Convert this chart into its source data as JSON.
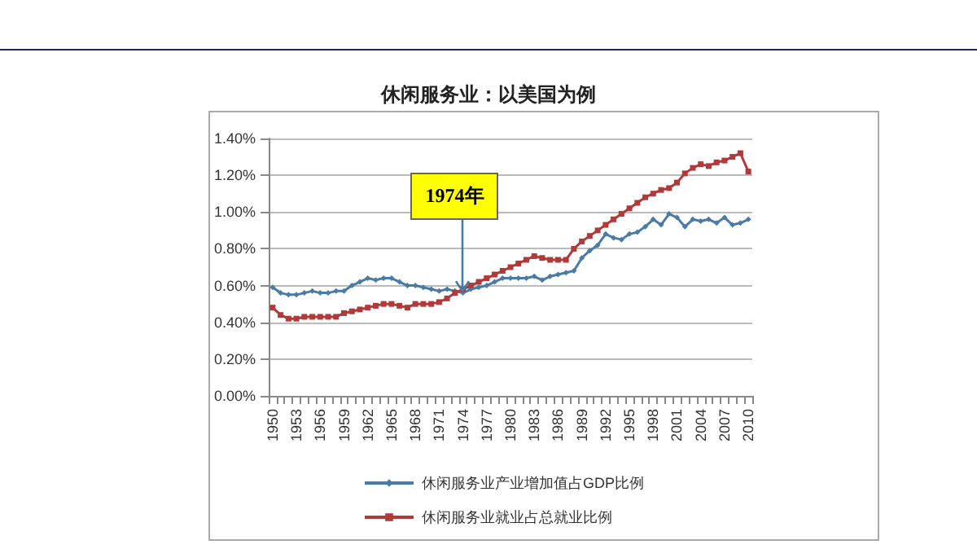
{
  "chart_data": {
    "type": "line",
    "title": "休闲服务业：以美国为例",
    "categories": [
      "1950",
      null,
      null,
      "1953",
      null,
      null,
      "1956",
      null,
      null,
      "1959",
      null,
      null,
      "1962",
      null,
      null,
      "1965",
      null,
      null,
      "1968",
      null,
      null,
      "1971",
      null,
      null,
      "1974",
      null,
      null,
      "1977",
      null,
      null,
      "1980",
      null,
      null,
      "1983",
      null,
      null,
      "1986",
      null,
      null,
      "1989",
      null,
      null,
      "1992",
      null,
      null,
      "1995",
      null,
      null,
      "1998",
      null,
      null,
      "2001",
      null,
      null,
      "2004",
      null,
      null,
      "2007",
      null,
      null,
      "2010"
    ],
    "series": [
      {
        "name": "休闲服务业产业增加值占GDP比例",
        "color": "#4a7ba6",
        "marker": "diamond",
        "values": [
          0.59,
          0.56,
          0.55,
          0.55,
          0.56,
          0.57,
          0.56,
          0.56,
          0.57,
          0.57,
          0.6,
          0.62,
          0.64,
          0.63,
          0.64,
          0.64,
          0.62,
          0.6,
          0.6,
          0.59,
          0.58,
          0.57,
          0.58,
          0.57,
          0.56,
          0.58,
          0.59,
          0.6,
          0.62,
          0.64,
          0.64,
          0.64,
          0.64,
          0.65,
          0.63,
          0.65,
          0.66,
          0.67,
          0.68,
          0.75,
          0.79,
          0.82,
          0.88,
          0.86,
          0.85,
          0.88,
          0.89,
          0.92,
          0.96,
          0.93,
          0.99,
          0.97,
          0.92,
          0.96,
          0.95,
          0.96,
          0.94,
          0.97,
          0.93,
          0.94,
          0.96
        ]
      },
      {
        "name": "休闲服务业就业占总就业比例",
        "color": "#b03a3a",
        "marker": "square",
        "values": [
          0.48,
          0.44,
          0.42,
          0.42,
          0.43,
          0.43,
          0.43,
          0.43,
          0.43,
          0.45,
          0.46,
          0.47,
          0.48,
          0.49,
          0.5,
          0.5,
          0.49,
          0.48,
          0.5,
          0.5,
          0.5,
          0.51,
          0.53,
          0.56,
          0.58,
          0.6,
          0.62,
          0.64,
          0.66,
          0.68,
          0.7,
          0.72,
          0.74,
          0.76,
          0.75,
          0.74,
          0.74,
          0.74,
          0.8,
          0.84,
          0.87,
          0.9,
          0.93,
          0.96,
          0.99,
          1.02,
          1.05,
          1.08,
          1.1,
          1.12,
          1.13,
          1.16,
          1.21,
          1.24,
          1.26,
          1.25,
          1.27,
          1.28,
          1.3,
          1.32,
          1.22
        ]
      }
    ],
    "ylim": [
      0,
      1.4
    ],
    "yticks": [
      {
        "value": 0,
        "label": "0.00%"
      },
      {
        "value": 0.2,
        "label": "0.20%"
      },
      {
        "value": 0.4,
        "label": "0.40%"
      },
      {
        "value": 0.6,
        "label": "0.60%"
      },
      {
        "value": 0.8,
        "label": "0.80%"
      },
      {
        "value": 1.0,
        "label": "1.00%"
      },
      {
        "value": 1.2,
        "label": "1.20%"
      },
      {
        "value": 1.4,
        "label": "1.40%"
      }
    ],
    "grid": "y",
    "legend": "bottom",
    "annotations": [
      {
        "text": "1974年",
        "x": "1974",
        "y": 0.57
      }
    ]
  }
}
